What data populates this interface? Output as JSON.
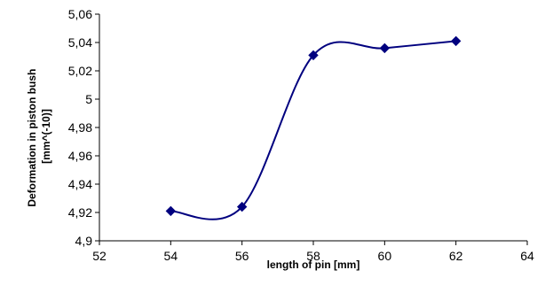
{
  "chart_data": {
    "type": "line",
    "title": "",
    "xlabel": "length of pin [mm]",
    "ylabel_lines": [
      "Deformation in piston bush",
      "[mm^(-10)]"
    ],
    "xlim": [
      52,
      64
    ],
    "ylim": [
      4.9,
      5.06
    ],
    "x_ticks": [
      52,
      54,
      56,
      58,
      60,
      62,
      64
    ],
    "x_tick_labels": [
      "52",
      "54",
      "56",
      "58",
      "60",
      "62",
      "64"
    ],
    "y_ticks": [
      4.9,
      4.92,
      4.94,
      4.96,
      4.98,
      5.0,
      5.02,
      5.04,
      5.06
    ],
    "y_tick_labels": [
      "4,9",
      "4,92",
      "4,94",
      "4,96",
      "4,98",
      "5",
      "5,02",
      "5,04",
      "5,06"
    ],
    "grid": false,
    "legend": "none",
    "smoothed": true,
    "marker": "diamond",
    "series_color": "#00007f",
    "series": [
      {
        "x": [
          54,
          56,
          58,
          60,
          62
        ],
        "values": [
          4.921,
          4.924,
          5.031,
          5.036,
          5.041
        ]
      }
    ]
  }
}
